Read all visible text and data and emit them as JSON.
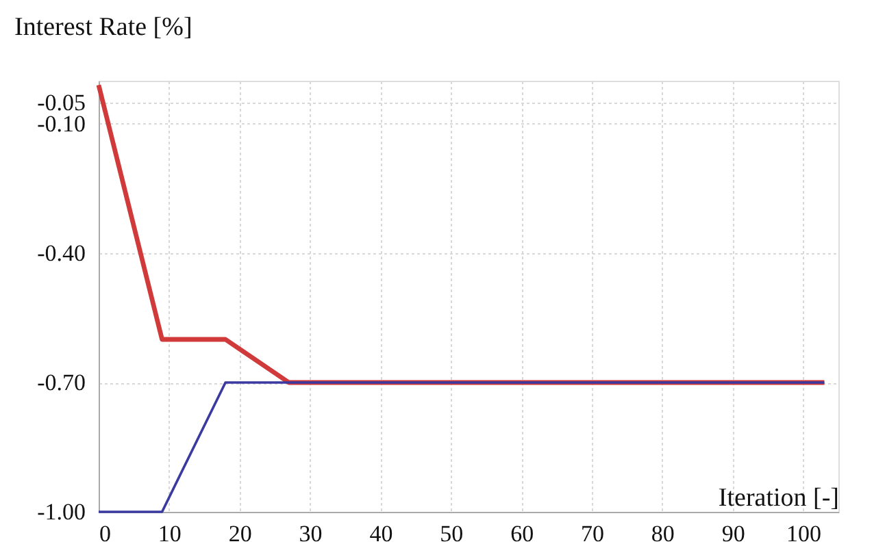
{
  "chart_data": {
    "type": "line",
    "xlabel": "Iteration [-]",
    "ylabel": "Interest Rate [%]",
    "series": [
      {
        "color": "#d03a3a",
        "x": [
          0,
          9,
          18,
          27,
          103
        ],
        "values": [
          -0.01,
          -0.6,
          -0.6,
          -0.7,
          -0.7
        ]
      },
      {
        "color": "#3a3aa0",
        "x": [
          0,
          9,
          18,
          27,
          103
        ],
        "values": [
          -1.0,
          -1.0,
          -0.7,
          -0.7,
          -0.7
        ]
      }
    ],
    "xlim": [
      0,
      105
    ],
    "xticks": [
      0,
      10,
      20,
      30,
      40,
      50,
      60,
      70,
      80,
      90,
      100
    ],
    "ylim": [
      -1.0,
      0.0
    ],
    "yticks": [
      {
        "value": -1.0,
        "label": "-1.00"
      },
      {
        "value": -0.7,
        "label": "-0.70"
      },
      {
        "value": -0.4,
        "label": "-0.40"
      },
      {
        "value": -0.1,
        "label": "-0.10"
      },
      {
        "value": -0.05,
        "label": "-0.05"
      }
    ],
    "grid": true,
    "marker": "none",
    "line_style": "solid"
  }
}
